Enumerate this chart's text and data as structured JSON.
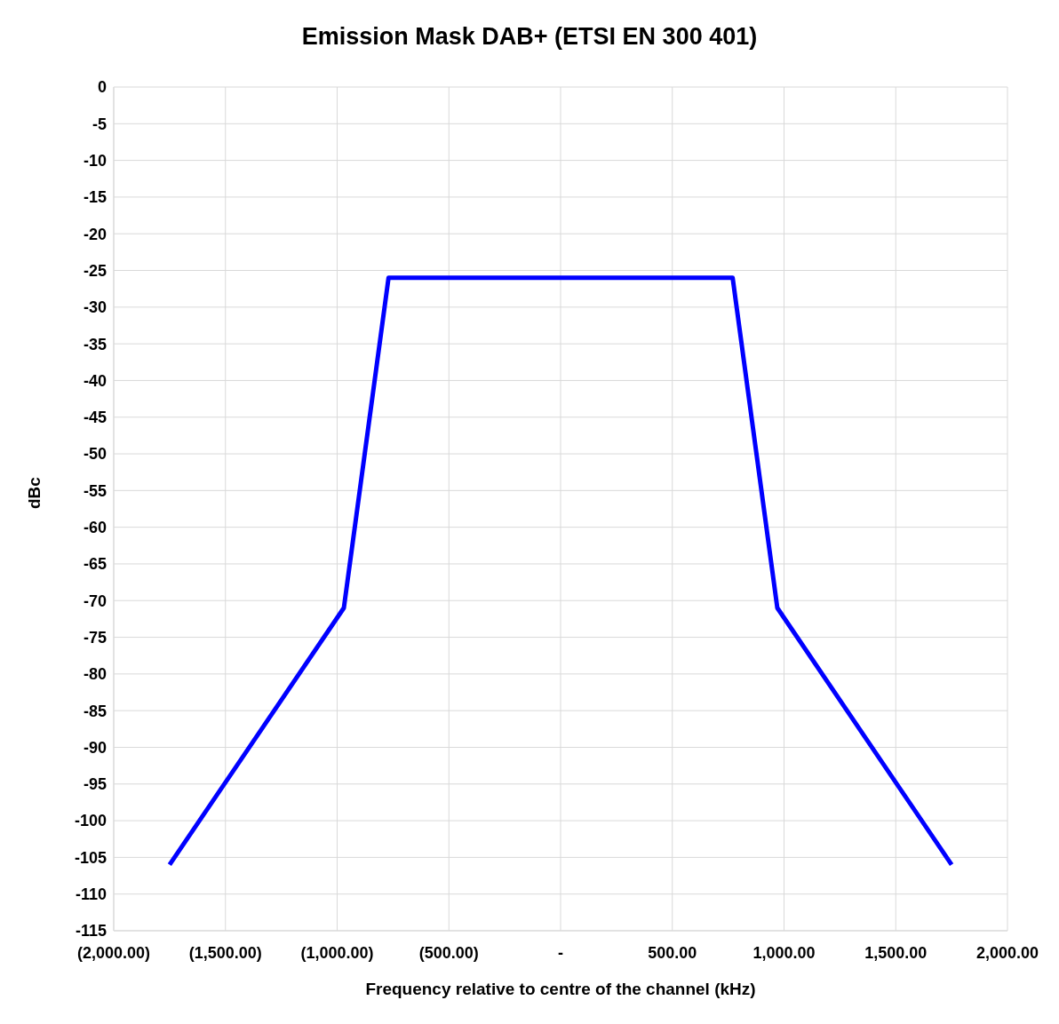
{
  "chart_data": {
    "type": "line",
    "title": "Emission Mask DAB+ (ETSI EN 300 401)",
    "xlabel": "Frequency relative to centre of the channel  (kHz)",
    "ylabel": "dBc",
    "x": [
      -1750,
      -970,
      -770,
      770,
      970,
      1750
    ],
    "series": [
      {
        "color": "#0000ff",
        "values": [
          -106,
          -71,
          -26,
          -26,
          -71,
          -106
        ]
      }
    ],
    "xlim": [
      -2000,
      2000
    ],
    "xticks": [
      {
        "value": -2000,
        "label": "(2,000.00)"
      },
      {
        "value": -1500,
        "label": "(1,500.00)"
      },
      {
        "value": -1000,
        "label": "(1,000.00)"
      },
      {
        "value": -500,
        "label": "(500.00)"
      },
      {
        "value": 0,
        "label": "-"
      },
      {
        "value": 500,
        "label": "500.00"
      },
      {
        "value": 1000,
        "label": "1,000.00"
      },
      {
        "value": 1500,
        "label": "1,500.00"
      },
      {
        "value": 2000,
        "label": "2,000.00"
      }
    ],
    "ylim": [
      -115,
      0
    ],
    "yticks": [
      0,
      -5,
      -10,
      -15,
      -20,
      -25,
      -30,
      -35,
      -40,
      -45,
      -50,
      -55,
      -60,
      -65,
      -70,
      -75,
      -80,
      -85,
      -90,
      -95,
      -100,
      -105,
      -110,
      -115
    ],
    "grid": true,
    "legend": false,
    "marker": "none",
    "line_style": "solid"
  }
}
